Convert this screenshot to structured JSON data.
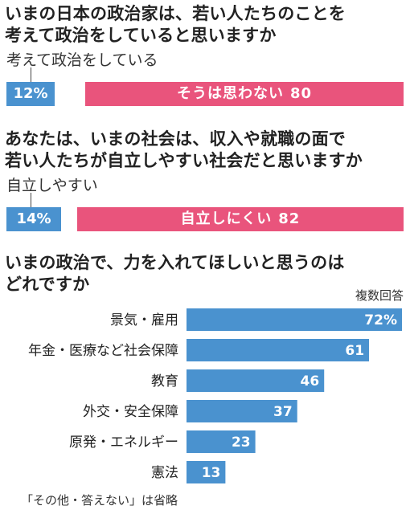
{
  "q1": {
    "title": "いまの日本の政治家は、若い人たちのことを\n考えて政治をしていると思いますか",
    "yes_label": "考えて政治をしている",
    "yes_value": "12%",
    "no_label": "そうは思わない",
    "no_value": "80"
  },
  "q2": {
    "title": "あなたは、いまの社会は、収入や就職の面で\n若い人たちが自立しやすい社会だと思いますか",
    "yes_label": "自立しやすい",
    "yes_value": "14%",
    "no_label": "自立しにくい",
    "no_value": "82"
  },
  "q3": {
    "title": "いまの政治で、力を入れてほしいと思うのは\nどれですか",
    "note": "複数回答"
  },
  "footnote": "「その他・答えない」は省略",
  "colors": {
    "blue": "#4a92cf",
    "pink": "#e9547c"
  },
  "chart_data": [
    {
      "type": "bar",
      "orientation": "horizontal",
      "title": "いまの日本の政治家は、若い人たちのことを考えて政治をしていると思いますか",
      "categories": [
        "考えて政治をしている",
        "そうは思わない"
      ],
      "values": [
        12,
        80
      ],
      "unit": "%"
    },
    {
      "type": "bar",
      "orientation": "horizontal",
      "title": "あなたは、いまの社会は、収入や就職の面で若い人たちが自立しやすい社会だと思いますか",
      "categories": [
        "自立しやすい",
        "自立しにくい"
      ],
      "values": [
        14,
        82
      ],
      "unit": "%"
    },
    {
      "type": "bar",
      "orientation": "horizontal",
      "title": "いまの政治で、力を入れてほしいと思うのはどれですか",
      "categories": [
        "景気・雇用",
        "年金・医療など社会保障",
        "教育",
        "外交・安全保障",
        "原発・エネルギー",
        "憲法"
      ],
      "values": [
        72,
        61,
        46,
        37,
        23,
        13
      ],
      "value_labels": [
        "72%",
        "61",
        "46",
        "37",
        "23",
        "13"
      ],
      "unit": "%",
      "xlim": [
        0,
        72
      ]
    }
  ]
}
